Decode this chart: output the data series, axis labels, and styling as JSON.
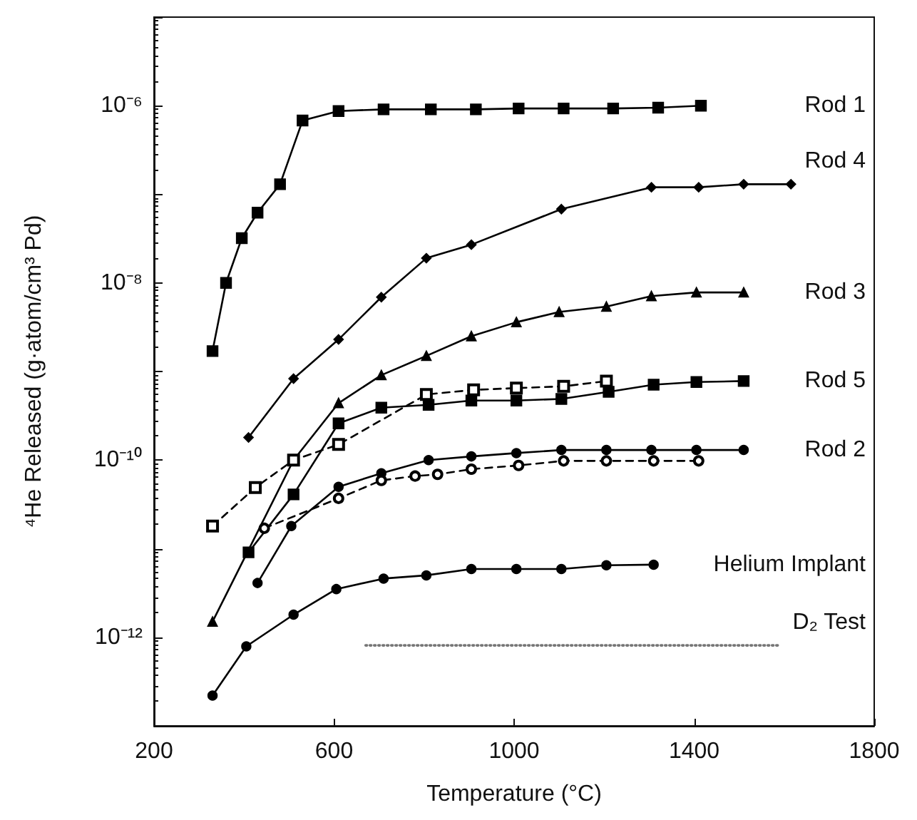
{
  "chart_data": {
    "type": "line",
    "xlabel": "Temperature (°C)",
    "ylabel": "⁴He Released (g·atom/cm³ Pd)",
    "xlim": [
      200,
      1800
    ],
    "xticks": [
      200,
      600,
      1000,
      1400,
      1800
    ],
    "ylim": [
      1e-13,
      1e-05
    ],
    "log": "y",
    "yticks": [
      {
        "value": 1e-13,
        "label": null
      },
      {
        "value": 1e-12,
        "label": "10⁻¹²"
      },
      {
        "value": 1e-11,
        "label": null
      },
      {
        "value": 1e-10,
        "label": "10⁻¹⁰"
      },
      {
        "value": 1e-09,
        "label": null
      },
      {
        "value": 1e-08,
        "label": "10⁻⁸"
      },
      {
        "value": 1e-07,
        "label": null
      },
      {
        "value": 1e-06,
        "label": "10⁻⁶"
      },
      {
        "value": 1e-05,
        "label": null
      }
    ],
    "grid": false,
    "legend": false,
    "series": [
      {
        "name": "Rod 1",
        "color": "#000000",
        "marker": "square",
        "line_style": "solid",
        "x": [
          330,
          360,
          395,
          430,
          480,
          530,
          610,
          710,
          815,
          915,
          1010,
          1110,
          1220,
          1320,
          1415
        ],
        "values": [
          1.7e-09,
          1e-08,
          3.2e-08,
          6.2e-08,
          1.3e-07,
          6.8e-07,
          8.7e-07,
          9.1e-07,
          9.1e-07,
          9.1e-07,
          9.3e-07,
          9.3e-07,
          9.3e-07,
          9.5e-07,
          1e-06
        ]
      },
      {
        "name": "Rod 4",
        "color": "#000000",
        "marker": "diamond",
        "line_style": "solid",
        "x": [
          410,
          510,
          610,
          705,
          805,
          905,
          1105,
          1305,
          1410,
          1510,
          1615
        ],
        "values": [
          1.8e-10,
          8.3e-10,
          2.3e-09,
          6.9e-09,
          1.9e-08,
          2.7e-08,
          6.8e-08,
          1.2e-07,
          1.2e-07,
          1.3e-07,
          1.3e-07
        ]
      },
      {
        "name": "Rod 3",
        "color": "#000000",
        "marker": "triangle",
        "line_style": "solid",
        "x": [
          330,
          510,
          610,
          705,
          805,
          905,
          1005,
          1100,
          1205,
          1305,
          1405,
          1510
        ],
        "values": [
          1.5e-12,
          1e-10,
          4.4e-10,
          9.1e-10,
          1.5e-09,
          2.5e-09,
          3.6e-09,
          4.7e-09,
          5.4e-09,
          7.1e-09,
          7.8e-09,
          7.8e-09
        ]
      },
      {
        "name": "Rod 5",
        "color": "#000000",
        "marker": "square",
        "line_style": "solid",
        "x": [
          410,
          510,
          610,
          705,
          810,
          905,
          1005,
          1105,
          1210,
          1310,
          1405,
          1510
        ],
        "values": [
          9.1e-12,
          4.1e-11,
          2.6e-10,
          3.9e-10,
          4.2e-10,
          4.7e-10,
          4.7e-10,
          4.9e-10,
          5.9e-10,
          7.1e-10,
          7.6e-10,
          7.8e-10
        ]
      },
      {
        "color": "#000000",
        "marker": "square",
        "line_style": "dashed",
        "x": [
          330,
          425,
          510,
          610,
          805,
          910,
          1005,
          1110,
          1205
        ],
        "values": [
          1.8e-11,
          4.9e-11,
          1e-10,
          1.5e-10,
          5.5e-10,
          6.2e-10,
          6.5e-10,
          6.8e-10,
          7.8e-10
        ]
      },
      {
        "name": "Rod 2",
        "color": "#000000",
        "marker": "circle",
        "line_style": "solid",
        "x": [
          430,
          505,
          610,
          705,
          810,
          905,
          1005,
          1105,
          1205,
          1305,
          1405,
          1510
        ],
        "values": [
          4.1e-12,
          1.8e-11,
          5e-11,
          7.1e-11,
          1e-10,
          1.1e-10,
          1.2e-10,
          1.3e-10,
          1.3e-10,
          1.3e-10,
          1.3e-10,
          1.3e-10
        ]
      },
      {
        "color": "#000000",
        "marker": "circle",
        "line_style": "dashed",
        "x": [
          445,
          610,
          705,
          780,
          830,
          905,
          1010,
          1110,
          1205,
          1310,
          1410
        ],
        "values": [
          1.7e-11,
          3.7e-11,
          5.9e-11,
          6.6e-11,
          6.9e-11,
          7.9e-11,
          8.7e-11,
          9.8e-11,
          9.8e-11,
          9.8e-11,
          9.8e-11
        ]
      },
      {
        "name": "Helium Implant",
        "color": "#000000",
        "marker": "circle",
        "line_style": "solid",
        "x": [
          330,
          405,
          510,
          605,
          710,
          805,
          905,
          1005,
          1105,
          1205,
          1310
        ],
        "values": [
          2.2e-13,
          7.9e-13,
          1.8e-12,
          3.5e-12,
          4.6e-12,
          5e-12,
          5.9e-12,
          5.9e-12,
          5.9e-12,
          6.5e-12,
          6.6e-12
        ]
      },
      {
        "name": "D₂ Test",
        "color": "#777777",
        "marker": "none",
        "line_style": "dotted",
        "x": [
          670,
          1590
        ],
        "values": [
          8.1e-13,
          8.1e-13
        ]
      }
    ]
  }
}
